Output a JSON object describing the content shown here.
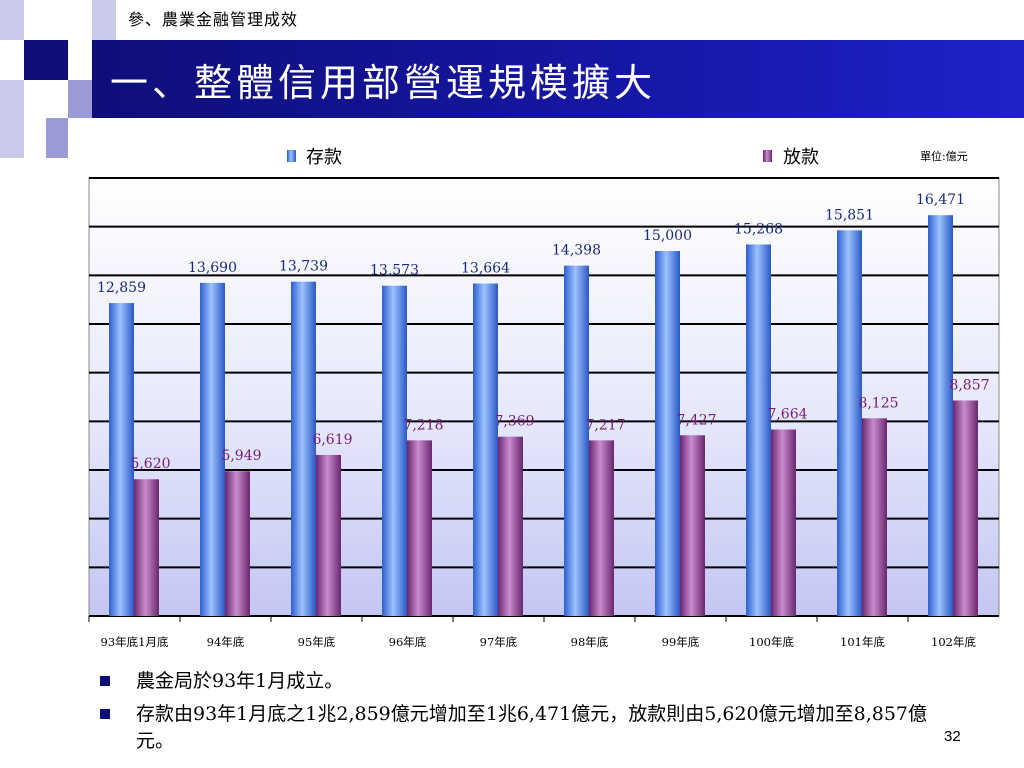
{
  "section_label": "參、農業金融管理成效",
  "title": "一、整體信用部營運規模擴大",
  "unit_label": "單位:億元",
  "colors": {
    "title_bar": "#1616a4",
    "deposit": "#4a86ea",
    "loan": "#8a3c8e"
  },
  "chart_data": {
    "type": "bar",
    "categories": [
      "93年底1月底",
      "94年底",
      "95年底",
      "96年底",
      "97年底",
      "98年底",
      "99年底",
      "100年底",
      "101年底",
      "102年底"
    ],
    "series": [
      {
        "name": "存款",
        "values": [
          12859,
          13690,
          13739,
          13573,
          13664,
          14398,
          15000,
          15268,
          15851,
          16471
        ],
        "labels": [
          "12,859",
          "13,690",
          "13,739",
          "13,573",
          "13,664",
          "14,398",
          "15,000",
          "15,268",
          "15,851",
          "16,471"
        ]
      },
      {
        "name": "放款",
        "values": [
          5620,
          5949,
          6619,
          7218,
          7369,
          7217,
          7427,
          7664,
          8125,
          8857
        ],
        "labels": [
          "5,620",
          "5,949",
          "6,619",
          "7,218",
          "7,369",
          "7,217",
          "7,427",
          "7,664",
          "8,125",
          "8,857"
        ]
      }
    ],
    "ylim": [
      0,
      18000
    ],
    "grid": true,
    "legend": "top"
  },
  "bullets": [
    "農金局於93年1月成立。",
    "存款由93年1月底之1兆2,859億元增加至1兆6,471億元，放款則由5,620億元增加至8,857億元。"
  ],
  "page_number": "32"
}
